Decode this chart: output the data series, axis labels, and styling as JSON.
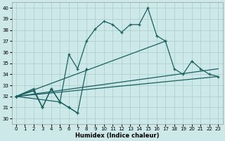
{
  "xlabel": "Humidex (Indice chaleur)",
  "xlim": [
    -0.5,
    23.5
  ],
  "ylim": [
    29.5,
    40.5
  ],
  "xticks": [
    0,
    1,
    2,
    3,
    4,
    5,
    6,
    7,
    8,
    9,
    10,
    11,
    12,
    13,
    14,
    15,
    16,
    17,
    18,
    19,
    20,
    21,
    22,
    23
  ],
  "yticks": [
    30,
    31,
    32,
    33,
    34,
    35,
    36,
    37,
    38,
    39,
    40
  ],
  "bg_color": "#cce8e8",
  "grid_color": "#aacccc",
  "line_color": "#1a6060",
  "line1_x": [
    0,
    2,
    3,
    4,
    5,
    6,
    7,
    8,
    9,
    10,
    11,
    12,
    13,
    14,
    15,
    16,
    17
  ],
  "line1_y": [
    32.0,
    32.5,
    31.0,
    32.7,
    31.5,
    35.8,
    34.5,
    37.0,
    38.1,
    38.8,
    38.5,
    37.8,
    38.5,
    38.5,
    40.0,
    37.5,
    37.0
  ],
  "line2_x": [
    0,
    2,
    3,
    4,
    5,
    6,
    7
  ],
  "line2_y": [
    32.0,
    32.7,
    31.0,
    32.7,
    31.5,
    31.0,
    30.5
  ],
  "line3_x": [
    0,
    5,
    6,
    7,
    8
  ],
  "line3_y": [
    32.0,
    31.5,
    31.0,
    30.5,
    34.5
  ],
  "line4_x": [
    0,
    17,
    18,
    19,
    20,
    21,
    22,
    23
  ],
  "line4_y": [
    32.0,
    37.0,
    34.5,
    34.0,
    35.2,
    34.5,
    34.0,
    33.8
  ],
  "line5_x": [
    0,
    23
  ],
  "line5_y": [
    32.0,
    33.8
  ],
  "line6_x": [
    0,
    23
  ],
  "line6_y": [
    32.0,
    34.5
  ]
}
